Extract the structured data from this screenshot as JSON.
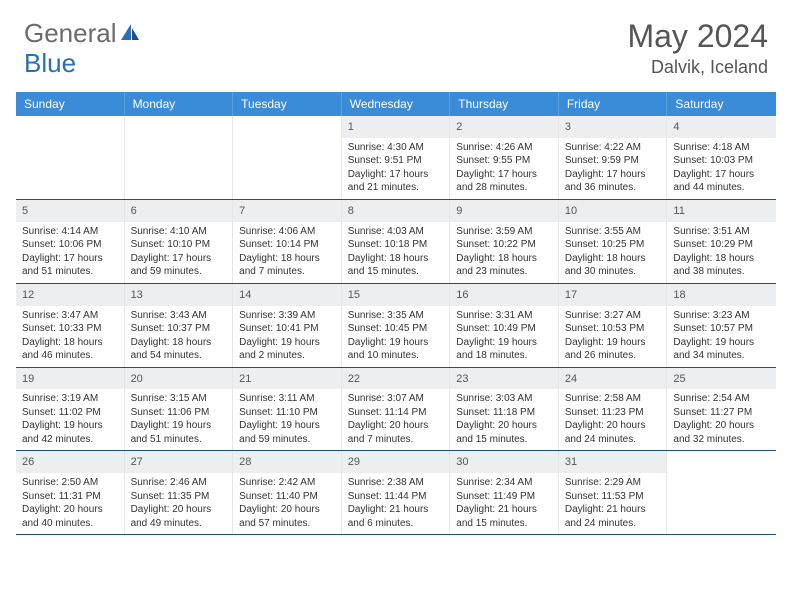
{
  "brand": {
    "word1": "General",
    "word2": "Blue"
  },
  "title": {
    "month": "May 2024",
    "location": "Dalvik, Iceland"
  },
  "colors": {
    "header_bg": "#3a8bd8",
    "header_text": "#ffffff",
    "row_divider": "#1f4f82",
    "daynum_bg": "#eceff1",
    "brand_gray": "#6b6b6b",
    "brand_blue": "#2a6fb5"
  },
  "dow": [
    "Sunday",
    "Monday",
    "Tuesday",
    "Wednesday",
    "Thursday",
    "Friday",
    "Saturday"
  ],
  "weeks": [
    [
      {
        "n": "",
        "sr": "",
        "ss": "",
        "dl": ""
      },
      {
        "n": "",
        "sr": "",
        "ss": "",
        "dl": ""
      },
      {
        "n": "",
        "sr": "",
        "ss": "",
        "dl": ""
      },
      {
        "n": "1",
        "sr": "Sunrise: 4:30 AM",
        "ss": "Sunset: 9:51 PM",
        "dl": "Daylight: 17 hours and 21 minutes."
      },
      {
        "n": "2",
        "sr": "Sunrise: 4:26 AM",
        "ss": "Sunset: 9:55 PM",
        "dl": "Daylight: 17 hours and 28 minutes."
      },
      {
        "n": "3",
        "sr": "Sunrise: 4:22 AM",
        "ss": "Sunset: 9:59 PM",
        "dl": "Daylight: 17 hours and 36 minutes."
      },
      {
        "n": "4",
        "sr": "Sunrise: 4:18 AM",
        "ss": "Sunset: 10:03 PM",
        "dl": "Daylight: 17 hours and 44 minutes."
      }
    ],
    [
      {
        "n": "5",
        "sr": "Sunrise: 4:14 AM",
        "ss": "Sunset: 10:06 PM",
        "dl": "Daylight: 17 hours and 51 minutes."
      },
      {
        "n": "6",
        "sr": "Sunrise: 4:10 AM",
        "ss": "Sunset: 10:10 PM",
        "dl": "Daylight: 17 hours and 59 minutes."
      },
      {
        "n": "7",
        "sr": "Sunrise: 4:06 AM",
        "ss": "Sunset: 10:14 PM",
        "dl": "Daylight: 18 hours and 7 minutes."
      },
      {
        "n": "8",
        "sr": "Sunrise: 4:03 AM",
        "ss": "Sunset: 10:18 PM",
        "dl": "Daylight: 18 hours and 15 minutes."
      },
      {
        "n": "9",
        "sr": "Sunrise: 3:59 AM",
        "ss": "Sunset: 10:22 PM",
        "dl": "Daylight: 18 hours and 23 minutes."
      },
      {
        "n": "10",
        "sr": "Sunrise: 3:55 AM",
        "ss": "Sunset: 10:25 PM",
        "dl": "Daylight: 18 hours and 30 minutes."
      },
      {
        "n": "11",
        "sr": "Sunrise: 3:51 AM",
        "ss": "Sunset: 10:29 PM",
        "dl": "Daylight: 18 hours and 38 minutes."
      }
    ],
    [
      {
        "n": "12",
        "sr": "Sunrise: 3:47 AM",
        "ss": "Sunset: 10:33 PM",
        "dl": "Daylight: 18 hours and 46 minutes."
      },
      {
        "n": "13",
        "sr": "Sunrise: 3:43 AM",
        "ss": "Sunset: 10:37 PM",
        "dl": "Daylight: 18 hours and 54 minutes."
      },
      {
        "n": "14",
        "sr": "Sunrise: 3:39 AM",
        "ss": "Sunset: 10:41 PM",
        "dl": "Daylight: 19 hours and 2 minutes."
      },
      {
        "n": "15",
        "sr": "Sunrise: 3:35 AM",
        "ss": "Sunset: 10:45 PM",
        "dl": "Daylight: 19 hours and 10 minutes."
      },
      {
        "n": "16",
        "sr": "Sunrise: 3:31 AM",
        "ss": "Sunset: 10:49 PM",
        "dl": "Daylight: 19 hours and 18 minutes."
      },
      {
        "n": "17",
        "sr": "Sunrise: 3:27 AM",
        "ss": "Sunset: 10:53 PM",
        "dl": "Daylight: 19 hours and 26 minutes."
      },
      {
        "n": "18",
        "sr": "Sunrise: 3:23 AM",
        "ss": "Sunset: 10:57 PM",
        "dl": "Daylight: 19 hours and 34 minutes."
      }
    ],
    [
      {
        "n": "19",
        "sr": "Sunrise: 3:19 AM",
        "ss": "Sunset: 11:02 PM",
        "dl": "Daylight: 19 hours and 42 minutes."
      },
      {
        "n": "20",
        "sr": "Sunrise: 3:15 AM",
        "ss": "Sunset: 11:06 PM",
        "dl": "Daylight: 19 hours and 51 minutes."
      },
      {
        "n": "21",
        "sr": "Sunrise: 3:11 AM",
        "ss": "Sunset: 11:10 PM",
        "dl": "Daylight: 19 hours and 59 minutes."
      },
      {
        "n": "22",
        "sr": "Sunrise: 3:07 AM",
        "ss": "Sunset: 11:14 PM",
        "dl": "Daylight: 20 hours and 7 minutes."
      },
      {
        "n": "23",
        "sr": "Sunrise: 3:03 AM",
        "ss": "Sunset: 11:18 PM",
        "dl": "Daylight: 20 hours and 15 minutes."
      },
      {
        "n": "24",
        "sr": "Sunrise: 2:58 AM",
        "ss": "Sunset: 11:23 PM",
        "dl": "Daylight: 20 hours and 24 minutes."
      },
      {
        "n": "25",
        "sr": "Sunrise: 2:54 AM",
        "ss": "Sunset: 11:27 PM",
        "dl": "Daylight: 20 hours and 32 minutes."
      }
    ],
    [
      {
        "n": "26",
        "sr": "Sunrise: 2:50 AM",
        "ss": "Sunset: 11:31 PM",
        "dl": "Daylight: 20 hours and 40 minutes."
      },
      {
        "n": "27",
        "sr": "Sunrise: 2:46 AM",
        "ss": "Sunset: 11:35 PM",
        "dl": "Daylight: 20 hours and 49 minutes."
      },
      {
        "n": "28",
        "sr": "Sunrise: 2:42 AM",
        "ss": "Sunset: 11:40 PM",
        "dl": "Daylight: 20 hours and 57 minutes."
      },
      {
        "n": "29",
        "sr": "Sunrise: 2:38 AM",
        "ss": "Sunset: 11:44 PM",
        "dl": "Daylight: 21 hours and 6 minutes."
      },
      {
        "n": "30",
        "sr": "Sunrise: 2:34 AM",
        "ss": "Sunset: 11:49 PM",
        "dl": "Daylight: 21 hours and 15 minutes."
      },
      {
        "n": "31",
        "sr": "Sunrise: 2:29 AM",
        "ss": "Sunset: 11:53 PM",
        "dl": "Daylight: 21 hours and 24 minutes."
      },
      {
        "n": "",
        "sr": "",
        "ss": "",
        "dl": ""
      }
    ]
  ]
}
